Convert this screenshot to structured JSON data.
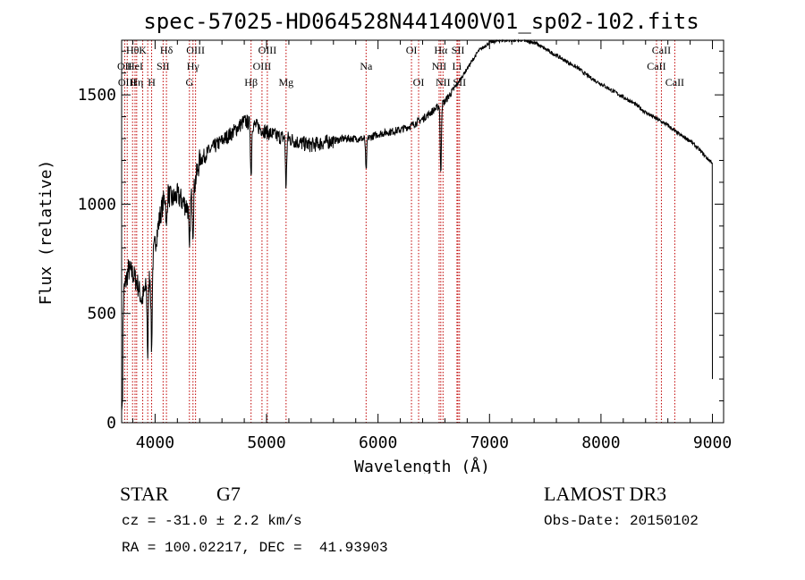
{
  "chart_data": {
    "type": "line",
    "title": "spec-57025-HD064528N441400V01_sp02-102.fits",
    "xlabel": "Wavelength (Å)",
    "ylabel": "Flux (relative)",
    "xlim": [
      3700,
      9100
    ],
    "ylim": [
      0,
      1750
    ],
    "x_ticks": [
      4000,
      5000,
      6000,
      7000,
      8000,
      9000
    ],
    "y_ticks": [
      0,
      500,
      1000,
      1500
    ],
    "series": [
      {
        "name": "flux",
        "continuum": [
          [
            3700,
            180
          ],
          [
            3720,
            600
          ],
          [
            3760,
            700
          ],
          [
            3800,
            680
          ],
          [
            3840,
            640
          ],
          [
            3880,
            560
          ],
          [
            3920,
            620
          ],
          [
            3960,
            680
          ],
          [
            4000,
            820
          ],
          [
            4050,
            960
          ],
          [
            4100,
            1060
          ],
          [
            4150,
            1020
          ],
          [
            4200,
            1040
          ],
          [
            4250,
            1010
          ],
          [
            4300,
            980
          ],
          [
            4350,
            1080
          ],
          [
            4400,
            1200
          ],
          [
            4500,
            1250
          ],
          [
            4600,
            1290
          ],
          [
            4700,
            1330
          ],
          [
            4800,
            1380
          ],
          [
            4900,
            1360
          ],
          [
            5000,
            1330
          ],
          [
            5100,
            1310
          ],
          [
            5200,
            1300
          ],
          [
            5300,
            1280
          ],
          [
            5400,
            1270
          ],
          [
            5500,
            1280
          ],
          [
            5600,
            1290
          ],
          [
            5700,
            1300
          ],
          [
            5800,
            1300
          ],
          [
            5900,
            1300
          ],
          [
            6000,
            1320
          ],
          [
            6100,
            1330
          ],
          [
            6200,
            1340
          ],
          [
            6300,
            1360
          ],
          [
            6400,
            1390
          ],
          [
            6500,
            1430
          ],
          [
            6600,
            1470
          ],
          [
            6700,
            1540
          ],
          [
            6800,
            1620
          ],
          [
            6900,
            1700
          ],
          [
            7000,
            1740
          ],
          [
            7100,
            1750
          ],
          [
            7200,
            1750
          ],
          [
            7300,
            1750
          ],
          [
            7400,
            1740
          ],
          [
            7500,
            1710
          ],
          [
            7600,
            1680
          ],
          [
            7700,
            1650
          ],
          [
            7800,
            1620
          ],
          [
            7900,
            1580
          ],
          [
            8000,
            1550
          ],
          [
            8100,
            1520
          ],
          [
            8200,
            1490
          ],
          [
            8300,
            1460
          ],
          [
            8400,
            1420
          ],
          [
            8500,
            1390
          ],
          [
            8600,
            1360
          ],
          [
            8700,
            1320
          ],
          [
            8800,
            1290
          ],
          [
            8900,
            1240
          ],
          [
            8950,
            1210
          ],
          [
            9000,
            1190
          ]
        ],
        "absorption_lines": [
          [
            3934,
            330
          ],
          [
            3969,
            380
          ],
          [
            4102,
            180
          ],
          [
            4308,
            220
          ],
          [
            4340,
            180
          ],
          [
            4861,
            240
          ],
          [
            5175,
            230
          ],
          [
            5893,
            150
          ],
          [
            6563,
            320
          ]
        ]
      }
    ],
    "line_markers": [
      {
        "wavelength": 3727,
        "label": "OII",
        "row": 1
      },
      {
        "wavelength": 3750,
        "label": "OIII",
        "row": 2
      },
      {
        "wavelength": 3798,
        "label": "Hθ",
        "row": 0
      },
      {
        "wavelength": 3820,
        "label": "HeI",
        "row": 1
      },
      {
        "wavelength": 3835,
        "label": "Hη",
        "row": 2
      },
      {
        "wavelength": 3889,
        "label": "K",
        "row": 0
      },
      {
        "wavelength": 3934,
        "label": "",
        "row": 0
      },
      {
        "wavelength": 3969,
        "label": "H",
        "row": 2
      },
      {
        "wavelength": 4072,
        "label": "SII",
        "row": 1
      },
      {
        "wavelength": 4102,
        "label": "Hδ",
        "row": 0
      },
      {
        "wavelength": 4308,
        "label": "G",
        "row": 2
      },
      {
        "wavelength": 4340,
        "label": "Hγ",
        "row": 1
      },
      {
        "wavelength": 4363,
        "label": "OIII",
        "row": 0
      },
      {
        "wavelength": 4861,
        "label": "Hβ",
        "row": 2
      },
      {
        "wavelength": 4959,
        "label": "OIII",
        "row": 1
      },
      {
        "wavelength": 5007,
        "label": "OIII",
        "row": 0
      },
      {
        "wavelength": 5175,
        "label": "Mg",
        "row": 2
      },
      {
        "wavelength": 5893,
        "label": "Na",
        "row": 1
      },
      {
        "wavelength": 6300,
        "label": "OI",
        "row": 0
      },
      {
        "wavelength": 6364,
        "label": "OI",
        "row": 2
      },
      {
        "wavelength": 6548,
        "label": "NII",
        "row": 1
      },
      {
        "wavelength": 6563,
        "label": "Hα",
        "row": 0
      },
      {
        "wavelength": 6583,
        "label": "NII",
        "row": 2
      },
      {
        "wavelength": 6708,
        "label": "Li",
        "row": 1
      },
      {
        "wavelength": 6717,
        "label": "SII",
        "row": 0
      },
      {
        "wavelength": 6731,
        "label": "SII",
        "row": 2
      },
      {
        "wavelength": 8498,
        "label": "CaII",
        "row": 1
      },
      {
        "wavelength": 8542,
        "label": "CaII",
        "row": 0
      },
      {
        "wavelength": 8662,
        "label": "CaII",
        "row": 2
      }
    ]
  },
  "info": {
    "object_class": "STAR",
    "subclass": "G7",
    "survey": "LAMOST DR3",
    "cz": "cz = -31.0 ± 2.2 km/s",
    "obs_date": "Obs-Date: 20150102",
    "coords": "RA = 100.02217, DEC =  41.93903"
  },
  "colors": {
    "spectrum": "#000000",
    "line_marker": "#c00000",
    "axis": "#000000"
  }
}
